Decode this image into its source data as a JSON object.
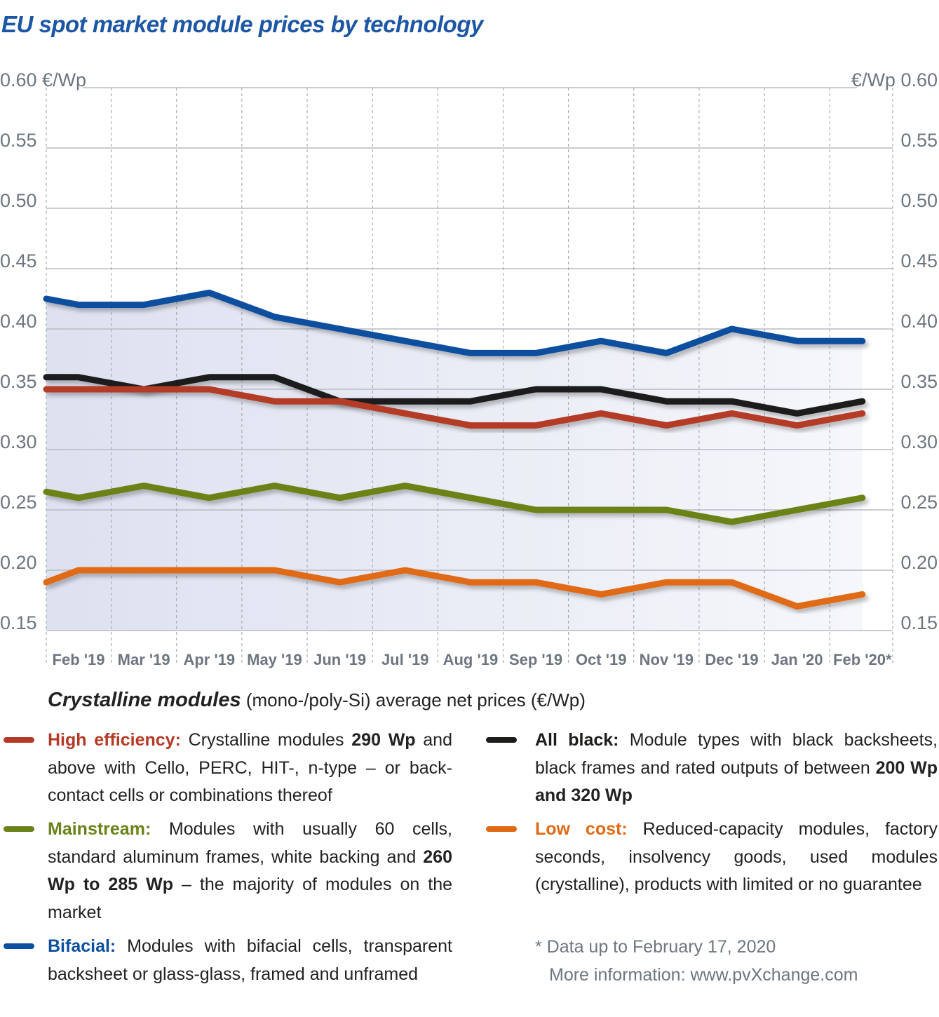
{
  "title": "EU spot market module prices  by technology",
  "chart_data": {
    "type": "line",
    "title": "EU spot market module prices  by technology",
    "left_axis_unit": "€/Wp",
    "right_axis_unit": "€/Wp",
    "ylim": [
      0.15,
      0.6
    ],
    "yticks": [
      "0.60",
      "0.55",
      "0.50",
      "0.45",
      "0.40",
      "0.35",
      "0.30",
      "0.25",
      "0.20",
      "0.15"
    ],
    "grid": true,
    "categories": [
      "Feb '19",
      "Mar '19",
      "Apr '19",
      "May '19",
      "Jun '19",
      "Jul '19",
      "Aug '19",
      "Sep '19",
      "Oct '19",
      "Nov '19",
      "Dec '19",
      "Jan '20",
      "Feb '20*"
    ],
    "series": [
      {
        "name": "Bifacial",
        "color": "#0b4f9e",
        "left_edge_value": 0.425,
        "values": [
          0.42,
          0.42,
          0.43,
          0.41,
          0.4,
          0.39,
          0.38,
          0.38,
          0.39,
          0.38,
          0.4,
          0.39,
          0.39
        ]
      },
      {
        "name": "All black",
        "color": "#1d1d1b",
        "left_edge_value": 0.36,
        "values": [
          0.36,
          0.35,
          0.36,
          0.36,
          0.34,
          0.34,
          0.34,
          0.35,
          0.35,
          0.34,
          0.34,
          0.33,
          0.34
        ]
      },
      {
        "name": "High efficiency",
        "color": "#b43a26",
        "left_edge_value": 0.35,
        "values": [
          0.35,
          0.35,
          0.35,
          0.34,
          0.34,
          0.33,
          0.32,
          0.32,
          0.33,
          0.32,
          0.33,
          0.32,
          0.33
        ]
      },
      {
        "name": "Mainstream",
        "color": "#6a8219",
        "left_edge_value": 0.265,
        "values": [
          0.26,
          0.27,
          0.26,
          0.27,
          0.26,
          0.27,
          0.26,
          0.25,
          0.25,
          0.25,
          0.24,
          0.25,
          0.26
        ]
      },
      {
        "name": "Low cost",
        "color": "#e06a14",
        "left_edge_value": 0.19,
        "values": [
          0.2,
          0.2,
          0.2,
          0.2,
          0.19,
          0.2,
          0.19,
          0.19,
          0.18,
          0.19,
          0.19,
          0.17,
          0.18
        ]
      }
    ]
  },
  "subtitle": {
    "bold": "Crystalline modules",
    "rest": " (mono-/poly-Si) average net prices (€/Wp)"
  },
  "legend": {
    "high_efficiency": {
      "name": "High efficiency:",
      "text": " Crystalline modules ",
      "bold": "290 Wp",
      "text2": " and above with Cello, PERC, HIT-, n-type – or back-contact cells or combinations thereof"
    },
    "mainstream": {
      "name": "Mainstream:",
      "text": " Modules with usually 60 cells, standard aluminum frames, white backing and ",
      "bold": "260 Wp to 285 Wp",
      "text2": " – the majority of modules on the market"
    },
    "bifacial": {
      "name": "Bifacial:",
      "text": " Modules with bifacial cells, transparent backsheet or glass-glass, framed and unframed"
    },
    "all_black": {
      "name": "All black:",
      "text": " Module types with black backsheets, black frames and rated outputs of between ",
      "bold": "200 Wp and 320 Wp"
    },
    "low_cost": {
      "name": "Low cost:",
      "text": " Reduced-capacity modules, factory seconds, insolvency goods, used modules (crystalline), products with limited or no guarantee"
    }
  },
  "note": {
    "line1": "* Data up to February 17, 2020",
    "line2": "More information: www.pvXchange.com"
  },
  "colors": {
    "title": "#1d56a4",
    "high_efficiency": "#b43a26",
    "mainstream": "#6a8219",
    "bifacial": "#0b4f9e",
    "all_black": "#1d1d1b",
    "low_cost": "#e06a14"
  }
}
